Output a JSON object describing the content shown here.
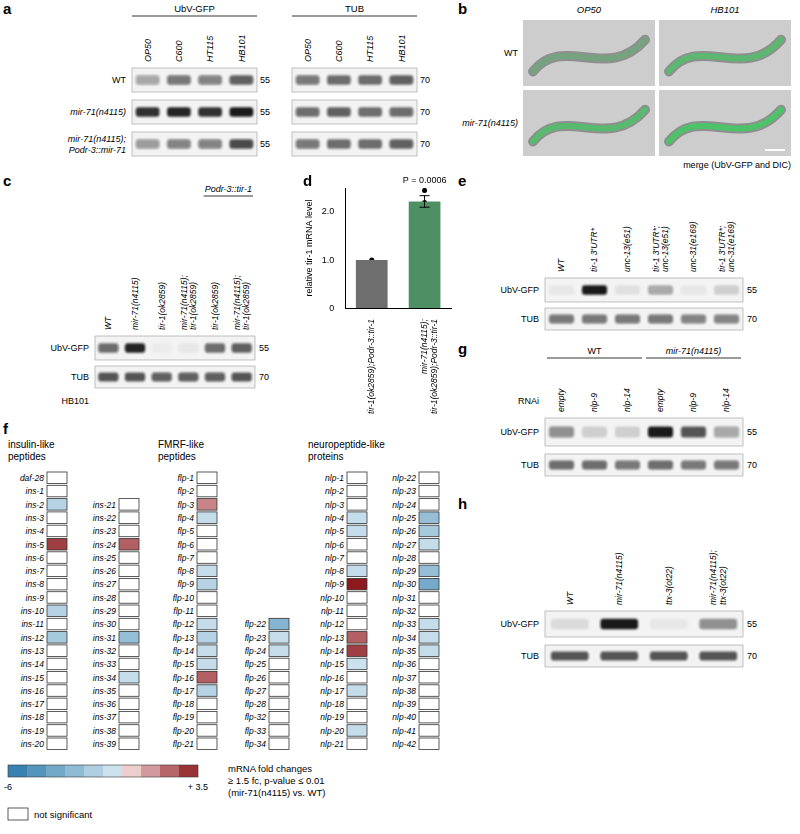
{
  "figure": {
    "a": {
      "label": "a",
      "headers": [
        "UbV-GFP",
        "TUB"
      ],
      "lanes": [
        {
          "text": [
            "OP50"
          ]
        },
        {
          "text": [
            "C600"
          ]
        },
        {
          "text": [
            "HT115"
          ]
        },
        {
          "text": [
            "HB101"
          ]
        }
      ],
      "markers": [
        55,
        70
      ],
      "rows": [
        {
          "name": [
            "WT"
          ],
          "bands": [
            [
              0.35,
              0.55,
              0.5,
              0.65
            ],
            [
              0.55,
              0.6,
              0.6,
              0.65
            ]
          ]
        },
        {
          "name": [
            "mir-71(n4115)"
          ],
          "bands": [
            [
              0.85,
              0.9,
              0.85,
              0.95
            ],
            [
              0.6,
              0.65,
              0.6,
              0.6
            ]
          ]
        },
        {
          "name": [
            "mir-71(n4115);",
            "Podr-3::mir-71"
          ],
          "bands": [
            [
              0.4,
              0.5,
              0.5,
              0.75
            ],
            [
              0.55,
              0.6,
              0.6,
              0.65
            ]
          ]
        }
      ]
    },
    "b": {
      "label": "b",
      "columns": [
        "OP50",
        "HB101"
      ],
      "rows": [
        "WT",
        "mir-71(n4115)"
      ],
      "gfp": [
        [
          0.35,
          0.7
        ],
        [
          0.75,
          0.9
        ]
      ],
      "caption": "merge (UbV-GFP and DIC)"
    },
    "c": {
      "label": "c",
      "lanes": [
        {
          "text": [
            "WT"
          ]
        },
        {
          "text": [
            "mir-71(n4115)"
          ]
        },
        {
          "text": [
            "tir-1(ok2859)"
          ]
        },
        {
          "text": [
            "mir-71(n4115);",
            "tir-1(ok2859)"
          ]
        },
        {
          "text": [
            "tir-1(ok2859)"
          ],
          "group": "Podr-3::tir-1"
        },
        {
          "text": [
            "mir-71(n4115);",
            "tir-1(ok2859)"
          ],
          "group": "Podr-3::tir-1"
        }
      ],
      "rows": [
        {
          "name": "UbV-GFP",
          "marker": 55,
          "bands": [
            0.6,
            0.9,
            0.03,
            0.05,
            0.6,
            0.65
          ]
        },
        {
          "name": "TUB",
          "marker": 70,
          "bands": [
            0.7,
            0.7,
            0.65,
            0.65,
            0.65,
            0.7
          ]
        }
      ],
      "condition": "HB101"
    },
    "d": {
      "label": "d"
    },
    "e": {
      "label": "e",
      "lanes": [
        {
          "text": [
            "WT"
          ]
        },
        {
          "text": [
            "tir-1 3'UTR*"
          ]
        },
        {
          "text": [
            "unc-13(e51)"
          ]
        },
        {
          "text": [
            "tir-1 3'UTR*;",
            "unc-13(e51)"
          ]
        },
        {
          "text": [
            "unc-31(e169)"
          ]
        },
        {
          "text": [
            "tir-1 3'UTR*;",
            "unc-31(e169)"
          ]
        }
      ],
      "rows": [
        {
          "name": "UbV-GFP",
          "marker": 55,
          "bands": [
            0.05,
            0.95,
            0.08,
            0.3,
            0.05,
            0.15
          ]
        },
        {
          "name": "TUB",
          "marker": 70,
          "bands": [
            0.55,
            0.55,
            0.55,
            0.55,
            0.5,
            0.5
          ]
        }
      ]
    },
    "f": {
      "label": "f",
      "groups": [
        {
          "title": [
            "insulin-like",
            "peptides"
          ],
          "columns": [
            {
              "genes": [
                "daf-28",
                "ins-1",
                "ins-2",
                "ins-3",
                "ins-4",
                "ins-5",
                "ins-6",
                "ins-7",
                "ins-8",
                "ins-9",
                "ins-10",
                "ins-11",
                "ins-12",
                "ins-13",
                "ins-14",
                "ins-15",
                "ins-16",
                "ins-17",
                "ins-18",
                "ins-19",
                "ins-20"
              ],
              "values": [
                null,
                null,
                -1.5,
                null,
                null,
                2.8,
                null,
                null,
                null,
                null,
                -1.5,
                null,
                -2,
                null,
                null,
                null,
                null,
                null,
                null,
                null,
                null
              ]
            },
            {
              "genes": [
                null,
                null,
                "ins-21",
                "ins-22",
                "ins-23",
                "ins-24",
                "ins-25",
                "ins-26",
                "ins-27",
                "ins-28",
                "ins-29",
                "ins-30",
                "ins-31",
                "ins-32",
                "ins-33",
                "ins-34",
                "ins-35",
                "ins-36",
                "ins-37",
                "ins-38",
                "ins-39"
              ],
              "values": [
                null,
                null,
                null,
                null,
                null,
                2.2,
                null,
                null,
                null,
                null,
                null,
                null,
                -2.5,
                null,
                null,
                -1,
                null,
                null,
                null,
                null,
                null
              ]
            }
          ]
        },
        {
          "title": [
            "FMRF-like",
            "peptides"
          ],
          "columns": [
            {
              "genes": [
                "flp-1",
                "flp-2",
                "flp-3",
                "flp-4",
                "flp-5",
                "flp-6",
                "flp-7",
                "flp-8",
                "flp-9",
                "flp-10",
                "flp-11",
                "flp-12",
                "flp-13",
                "flp-14",
                "flp-15",
                "flp-16",
                "flp-17",
                "flp-18",
                "flp-19",
                "flp-20",
                "flp-21"
              ],
              "values": [
                null,
                null,
                1.5,
                -1,
                null,
                null,
                null,
                -1,
                -1.5,
                null,
                null,
                -1,
                -1.5,
                -1,
                -1,
                2.2,
                -1.5,
                null,
                null,
                null,
                null
              ]
            },
            {
              "genes": [
                null,
                null,
                null,
                null,
                null,
                null,
                null,
                null,
                null,
                null,
                null,
                "flp-22",
                "flp-23",
                "flp-24",
                "flp-25",
                "flp-26",
                "flp-27",
                "flp-28",
                "flp-32",
                "flp-33",
                "flp-34"
              ],
              "values": [
                null,
                null,
                null,
                null,
                null,
                null,
                null,
                null,
                null,
                null,
                null,
                -3,
                -1,
                -1,
                null,
                null,
                null,
                null,
                null,
                null,
                null
              ]
            }
          ]
        },
        {
          "title": [
            "neuropeptide-like",
            "proteins"
          ],
          "columns": [
            {
              "genes": [
                "nlp-1",
                "nlp-2",
                "nlp-3",
                "nlp-4",
                "nlp-5",
                "nlp-6",
                "nlp-7",
                "nlp-8",
                "nlp-9",
                "nlp-10",
                "nlp-11",
                "nlp-12",
                "nlp-13",
                "nlp-14",
                "nlp-15",
                "nlp-16",
                "nlp-17",
                "nlp-18",
                "nlp-19",
                "nlp-20",
                "nlp-21"
              ],
              "values": [
                null,
                null,
                null,
                -1,
                -1,
                null,
                null,
                -1,
                3.5,
                null,
                null,
                null,
                2.2,
                2.8,
                -0.8,
                null,
                -1,
                null,
                null,
                -1,
                null
              ]
            },
            {
              "genes": [
                "nlp-22",
                "nlp-23",
                "nlp-24",
                "nlp-25",
                "nlp-26",
                "nlp-27",
                "nlp-28",
                "nlp-29",
                "nlp-30",
                "nlp-31",
                "nlp-32",
                "nlp-33",
                "nlp-34",
                "nlp-35",
                "nlp-36",
                "nlp-37",
                "nlp-38",
                "nlp-39",
                "nlp-40",
                "nlp-41",
                "nlp-42"
              ],
              "values": [
                null,
                null,
                null,
                -2.5,
                -2,
                -1,
                null,
                -2.5,
                -3.5,
                null,
                null,
                -1,
                -1,
                -1,
                null,
                null,
                null,
                null,
                null,
                null,
                null
              ]
            }
          ]
        }
      ],
      "colorbar": {
        "range": [
          -6,
          3.5
        ],
        "ticks": [
          -6,
          {
            "value": 3.5,
            "label": "+ 3.5"
          }
        ]
      },
      "not_significant": "not significant",
      "legend_text": [
        "mRNA fold changes",
        "≥ 1.5 fc, p-value ≤ 0.01",
        "(mir-71(n4115) vs. WT)"
      ]
    },
    "g": {
      "label": "g",
      "lane_title": "RNAi",
      "lanes": [
        {
          "text": [
            "empty"
          ],
          "group": "WT"
        },
        {
          "text": [
            "nlp-9"
          ],
          "group": "WT"
        },
        {
          "text": [
            "nlp-14"
          ],
          "group": "WT"
        },
        {
          "text": [
            "empty"
          ],
          "group": "mir-71(n4115)"
        },
        {
          "text": [
            "nlp-9"
          ],
          "group": "mir-71(n4115)"
        },
        {
          "text": [
            "nlp-14"
          ],
          "group": "mir-71(n4115)"
        }
      ],
      "rows": [
        {
          "name": "UbV-GFP",
          "marker": 55,
          "bands": [
            0.45,
            0.15,
            0.15,
            0.95,
            0.7,
            0.35
          ]
        },
        {
          "name": "TUB",
          "marker": 70,
          "bands": [
            0.6,
            0.6,
            0.55,
            0.6,
            0.55,
            0.55
          ]
        }
      ]
    },
    "h": {
      "label": "h",
      "lanes": [
        {
          "text": [
            "WT"
          ]
        },
        {
          "text": [
            "mir-71(n4115)"
          ]
        },
        {
          "text": [
            "ttx-3(ot22)"
          ]
        },
        {
          "text": [
            "mir-71(n4115);",
            "ttx-3(ot22)"
          ]
        }
      ],
      "rows": [
        {
          "name": "UbV-GFP",
          "marker": 55,
          "bands": [
            0.1,
            0.95,
            0.05,
            0.45
          ]
        },
        {
          "name": "TUB",
          "marker": 70,
          "bands": [
            0.7,
            0.7,
            0.7,
            0.7
          ]
        }
      ]
    }
  },
  "chart_data": {
    "type": "bar",
    "categories": [
      "tir-1(ok2859);Podr-3::tir-1",
      "mir-71(n4115);\ntir-1(ok2859);Podr-3::tir-1"
    ],
    "values": [
      1.0,
      2.22
    ],
    "error": [
      0,
      0.12
    ],
    "points": [
      [
        1,
        1,
        1
      ],
      [
        2.05,
        2.2,
        2.45
      ]
    ],
    "colors": [
      "#6e6e6e",
      "#4e8f63"
    ],
    "ylabel": "relative tir-1 mRNA level",
    "ylim": [
      0,
      2.5
    ],
    "yticks": [
      0,
      {
        "value": 1,
        "label": "1.0"
      },
      {
        "value": 2,
        "label": "2.0"
      }
    ],
    "grid": false,
    "annotation": "P = 0.0006"
  }
}
